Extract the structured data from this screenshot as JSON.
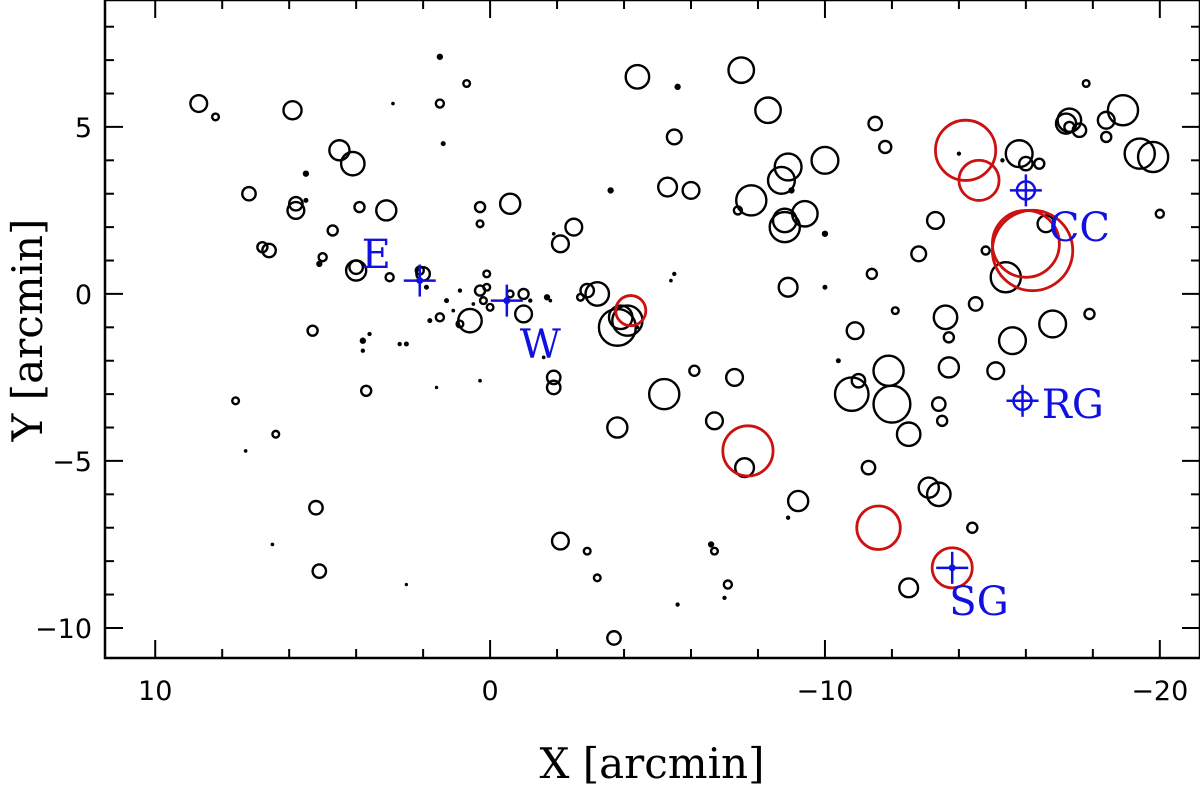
{
  "chart_data": {
    "type": "scatter",
    "xlabel": "X [arcmin]",
    "ylabel": "Y [arcmin]",
    "xlim": [
      11.5,
      -21.2
    ],
    "ylim": [
      -10.9,
      8.8
    ],
    "x_ticks": [
      10,
      0,
      -10,
      -20
    ],
    "x_tick_labels": [
      "10",
      "0",
      "−10",
      "−20"
    ],
    "y_ticks": [
      5,
      0,
      -5,
      -10
    ],
    "y_tick_labels": [
      "5",
      "0",
      "−5",
      "−10"
    ],
    "grid": false,
    "colors": {
      "black_circles": "#000000",
      "red_circles": "#cc1111",
      "sites": "#1010e0"
    },
    "series": [
      {
        "color": "black",
        "marker": "open-circle",
        "points": [
          [
            8.7,
            5.7,
            0.25
          ],
          [
            8.2,
            5.3,
            0.1
          ],
          [
            7.2,
            3.0,
            0.2
          ],
          [
            6.8,
            1.4,
            0.15
          ],
          [
            6.6,
            1.3,
            0.2
          ],
          [
            7.6,
            -3.2,
            0.1
          ],
          [
            6.4,
            -4.2,
            0.1
          ],
          [
            7.3,
            -4.7,
            0.04
          ],
          [
            6.5,
            -7.5,
            0.04
          ],
          [
            5.9,
            5.5,
            0.27
          ],
          [
            5.8,
            2.7,
            0.2
          ],
          [
            5.8,
            2.5,
            0.25
          ],
          [
            5.5,
            3.6,
            0.08
          ],
          [
            5.5,
            2.8,
            0.06
          ],
          [
            5.3,
            -1.1,
            0.15
          ],
          [
            5.2,
            -6.4,
            0.2
          ],
          [
            5.1,
            -8.3,
            0.2
          ],
          [
            5.0,
            1.1,
            0.12
          ],
          [
            5.1,
            0.9,
            0.08
          ],
          [
            4.7,
            1.9,
            0.15
          ],
          [
            4.5,
            4.3,
            0.3
          ],
          [
            4.1,
            3.9,
            0.35
          ],
          [
            4.0,
            0.7,
            0.3
          ],
          [
            4.0,
            0.8,
            0.2
          ],
          [
            3.9,
            2.6,
            0.15
          ],
          [
            3.8,
            -1.4,
            0.08
          ],
          [
            3.8,
            -1.7,
            0.05
          ],
          [
            3.7,
            -2.9,
            0.15
          ],
          [
            3.6,
            -1.2,
            0.05
          ],
          [
            3.1,
            2.5,
            0.3
          ],
          [
            3.0,
            0.5,
            0.12
          ],
          [
            2.9,
            5.7,
            0.04
          ],
          [
            2.7,
            -1.5,
            0.05
          ],
          [
            2.5,
            -1.5,
            0.06
          ],
          [
            2.5,
            -8.7,
            0.03
          ],
          [
            2.0,
            0.6,
            0.2
          ],
          [
            2.1,
            0.7,
            0.12
          ],
          [
            1.9,
            0.2,
            0.06
          ],
          [
            1.8,
            -0.8,
            0.06
          ],
          [
            1.5,
            -0.7,
            0.12
          ],
          [
            1.6,
            -2.8,
            0.03
          ],
          [
            1.5,
            7.1,
            0.08
          ],
          [
            1.5,
            5.7,
            0.12
          ],
          [
            1.4,
            4.5,
            0.06
          ],
          [
            1.3,
            -0.2,
            0.06
          ],
          [
            1.1,
            -0.5,
            0.04
          ],
          [
            0.9,
            -0.9,
            0.1
          ],
          [
            0.9,
            0.1,
            0.05
          ],
          [
            0.7,
            6.3,
            0.1
          ],
          [
            0.6,
            -0.8,
            0.35
          ],
          [
            0.5,
            -0.3,
            0.04
          ],
          [
            0.3,
            2.6,
            0.15
          ],
          [
            0.3,
            2.1,
            0.1
          ],
          [
            0.3,
            0.1,
            0.15
          ],
          [
            0.2,
            -0.2,
            0.1
          ],
          [
            0.1,
            0.2,
            0.1
          ],
          [
            0.1,
            0.6,
            0.1
          ],
          [
            0.0,
            -0.4,
            0.1
          ],
          [
            0.3,
            -2.6,
            0.04
          ],
          [
            -0.6,
            2.7,
            0.3
          ],
          [
            -0.6,
            0.0,
            0.1
          ],
          [
            -1.0,
            0.0,
            0.15
          ],
          [
            -1.0,
            -0.6,
            0.25
          ],
          [
            -1.2,
            -0.2,
            0.05
          ],
          [
            -1.6,
            -1.9,
            0.04
          ],
          [
            -1.9,
            1.8,
            0.04
          ],
          [
            -2.5,
            2.0,
            0.25
          ],
          [
            -2.1,
            1.5,
            0.25
          ],
          [
            -1.7,
            -0.1,
            0.08
          ],
          [
            -1.8,
            -0.2,
            0.04
          ],
          [
            -1.9,
            -2.5,
            0.2
          ],
          [
            -1.9,
            -2.8,
            0.2
          ],
          [
            -2.1,
            -7.4,
            0.25
          ],
          [
            -2.9,
            0.1,
            0.2
          ],
          [
            -3.2,
            0.0,
            0.35
          ],
          [
            -3.6,
            3.1,
            0.08
          ],
          [
            -3.8,
            -1.0,
            0.55
          ],
          [
            -3.9,
            -0.7,
            0.35
          ],
          [
            -4.1,
            -0.8,
            0.45
          ],
          [
            -3.7,
            -10.3,
            0.2
          ],
          [
            -2.9,
            -7.7,
            0.1
          ],
          [
            -3.2,
            -8.5,
            0.1
          ],
          [
            -3.8,
            -4.0,
            0.3
          ],
          [
            -4.4,
            6.5,
            0.35
          ],
          [
            -5.3,
            3.2,
            0.28
          ],
          [
            -5.5,
            4.7,
            0.22
          ],
          [
            -5.6,
            6.2,
            0.08
          ],
          [
            -5.5,
            0.6,
            0.05
          ],
          [
            -5.4,
            0.4,
            0.04
          ],
          [
            -5.2,
            -3.0,
            0.45
          ],
          [
            -5.6,
            -9.3,
            0.05
          ],
          [
            -6.0,
            3.1,
            0.25
          ],
          [
            -6.1,
            -2.3,
            0.15
          ],
          [
            -6.7,
            -3.8,
            0.25
          ],
          [
            -6.7,
            -7.7,
            0.1
          ],
          [
            -6.6,
            -7.5,
            0.08
          ],
          [
            -7.1,
            -8.7,
            0.12
          ],
          [
            -7.0,
            -9.1,
            0.05
          ],
          [
            -7.3,
            -2.5,
            0.25
          ],
          [
            -7.4,
            2.5,
            0.12
          ],
          [
            -7.5,
            6.7,
            0.38
          ],
          [
            -7.6,
            -5.2,
            0.28
          ],
          [
            -7.8,
            2.8,
            0.45
          ],
          [
            -8.3,
            5.5,
            0.38
          ],
          [
            -8.7,
            3.4,
            0.4
          ],
          [
            -8.9,
            3.8,
            0.4
          ],
          [
            -8.8,
            2.0,
            0.45
          ],
          [
            -8.8,
            2.2,
            0.35
          ],
          [
            -8.9,
            0.2,
            0.28
          ],
          [
            -9.0,
            3.1,
            0.08
          ],
          [
            -9.4,
            2.4,
            0.38
          ],
          [
            -9.2,
            -6.2,
            0.3
          ],
          [
            -8.9,
            -6.7,
            0.05
          ],
          [
            -10.0,
            4.0,
            0.4
          ],
          [
            -10.0,
            1.8,
            0.08
          ],
          [
            -10.0,
            0.2,
            0.06
          ],
          [
            -10.4,
            -2.0,
            0.06
          ],
          [
            -10.9,
            -1.1,
            0.25
          ],
          [
            -10.8,
            -3.0,
            0.5
          ],
          [
            -11.0,
            -2.6,
            0.2
          ],
          [
            -11.3,
            -5.2,
            0.2
          ],
          [
            -11.4,
            0.6,
            0.15
          ],
          [
            -11.5,
            5.1,
            0.2
          ],
          [
            -11.8,
            4.4,
            0.18
          ],
          [
            -11.9,
            -2.3,
            0.45
          ],
          [
            -12.0,
            -3.3,
            0.55
          ],
          [
            -12.1,
            -0.5,
            0.1
          ],
          [
            -12.5,
            -4.2,
            0.35
          ],
          [
            -12.5,
            -8.8,
            0.28
          ],
          [
            -12.8,
            1.2,
            0.22
          ],
          [
            -13.1,
            -5.8,
            0.3
          ],
          [
            -13.4,
            -6.0,
            0.35
          ],
          [
            -13.3,
            2.2,
            0.25
          ],
          [
            -13.4,
            -3.3,
            0.2
          ],
          [
            -13.5,
            -3.8,
            0.15
          ],
          [
            -13.6,
            -0.7,
            0.35
          ],
          [
            -13.7,
            -2.2,
            0.3
          ],
          [
            -13.7,
            -1.3,
            0.15
          ],
          [
            -14.4,
            -7.0,
            0.15
          ],
          [
            -14.5,
            -0.3,
            0.2
          ],
          [
            -14.8,
            1.3,
            0.12
          ],
          [
            -15.1,
            -2.3,
            0.25
          ],
          [
            -15.4,
            0.5,
            0.45
          ],
          [
            -15.6,
            -1.4,
            0.4
          ],
          [
            -15.8,
            4.2,
            0.4
          ],
          [
            -16.0,
            3.9,
            0.2
          ],
          [
            -16.4,
            3.9,
            0.15
          ],
          [
            -16.6,
            2.1,
            0.25
          ],
          [
            -16.8,
            -0.9,
            0.4
          ],
          [
            -17.2,
            5.1,
            0.3
          ],
          [
            -17.3,
            5.2,
            0.35
          ],
          [
            -17.3,
            5.0,
            0.15
          ],
          [
            -17.6,
            4.9,
            0.2
          ],
          [
            -17.9,
            -0.6,
            0.15
          ],
          [
            -17.8,
            6.3,
            0.1
          ],
          [
            -18.4,
            5.2,
            0.25
          ],
          [
            -18.4,
            4.7,
            0.15
          ],
          [
            -18.9,
            5.5,
            0.45
          ],
          [
            -19.4,
            4.2,
            0.45
          ],
          [
            -19.8,
            4.1,
            0.45
          ],
          [
            -20.0,
            2.4,
            0.12
          ],
          [
            -15.3,
            4.0,
            0.05
          ],
          [
            -14.0,
            4.2,
            0.05
          ],
          [
            -4.4,
            -1.0,
            0.04
          ],
          [
            -2.7,
            -0.1,
            0.1
          ]
        ]
      },
      {
        "color": "red",
        "marker": "open-circle",
        "points": [
          [
            -14.2,
            4.3,
            0.9
          ],
          [
            -14.6,
            3.4,
            0.6
          ],
          [
            -16.0,
            1.5,
            1.0
          ],
          [
            -16.2,
            1.3,
            1.2
          ],
          [
            -4.2,
            -0.5,
            0.45
          ],
          [
            -7.7,
            -4.7,
            0.75
          ],
          [
            -11.6,
            -7.0,
            0.65
          ],
          [
            -13.8,
            -8.2,
            0.6
          ]
        ]
      }
    ],
    "sites": [
      {
        "label": "CC",
        "x": -16.0,
        "y": 3.1,
        "marker": "cross-circle",
        "label_x": -17.6,
        "label_y": 2.0
      },
      {
        "label": "E",
        "x": 2.1,
        "y": 0.4,
        "marker": "cross",
        "label_x": 3.4,
        "label_y": 1.2
      },
      {
        "label": "W",
        "x": -0.5,
        "y": -0.2,
        "marker": "cross",
        "label_x": -1.5,
        "label_y": -1.5
      },
      {
        "label": "RG",
        "x": -15.9,
        "y": -3.2,
        "marker": "cross-circle",
        "label_x": -17.4,
        "label_y": -3.3
      },
      {
        "label": "SG",
        "x": -13.8,
        "y": -8.2,
        "marker": "cross",
        "label_x": -14.6,
        "label_y": -9.2
      }
    ]
  }
}
